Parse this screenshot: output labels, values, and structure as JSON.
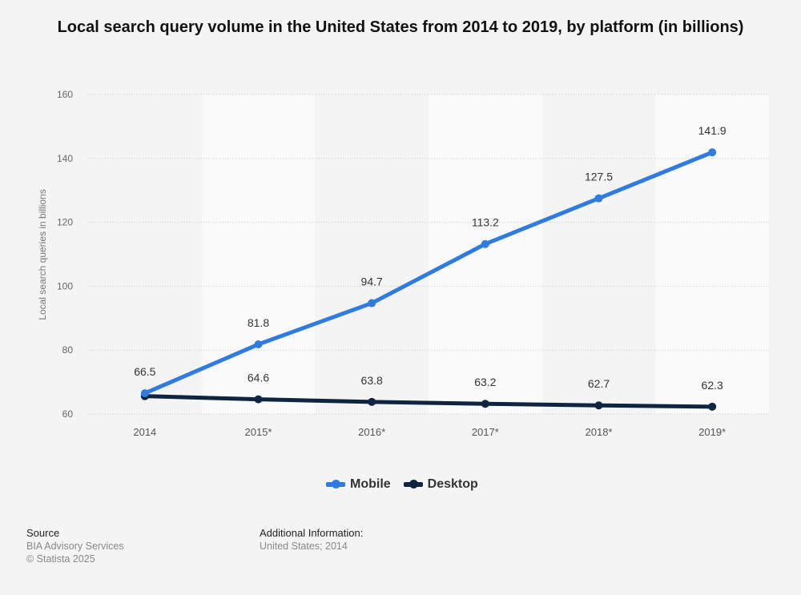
{
  "chart_data": {
    "type": "line",
    "title": "Local search query volume in the United States from 2014 to 2019, by platform (in billions)",
    "xlabel": "",
    "ylabel": "Local search queries in billions",
    "ylim": [
      60,
      160
    ],
    "yticks": [
      60,
      80,
      100,
      120,
      140,
      160
    ],
    "categories": [
      "2014",
      "2015*",
      "2016*",
      "2017*",
      "2018*",
      "2019*"
    ],
    "grid": true,
    "legend_position": "bottom",
    "series": [
      {
        "name": "Mobile",
        "color": "#2f7be0",
        "values": [
          66.5,
          81.8,
          94.7,
          113.2,
          127.5,
          141.9
        ],
        "labels": [
          "66.5",
          "81.8",
          "94.7",
          "113.2",
          "127.5",
          "141.9"
        ]
      },
      {
        "name": "Desktop",
        "color": "#0e2440",
        "values": [
          65.6,
          64.6,
          63.8,
          63.2,
          62.7,
          62.3
        ],
        "labels": [
          null,
          "64.6",
          "63.8",
          "63.2",
          "62.7",
          "62.3"
        ]
      }
    ]
  },
  "footer": {
    "source_heading": "Source",
    "source": "BIA Advisory Services",
    "copyright": "© Statista 2025",
    "additional_heading": "Additional Information:",
    "additional": "United States; 2014"
  }
}
